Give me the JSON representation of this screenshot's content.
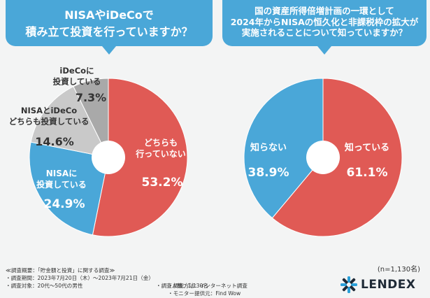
{
  "questions": {
    "q1": [
      "NISAやiDeCoで",
      "積み立て投資を行っていますか？"
    ],
    "q2": [
      "国の資産所得倍増計画の一環として",
      "2024年からNISAの恒久化と非課税枠の拡大が",
      "実施されることについて知っていますか？"
    ]
  },
  "chart_data": [
    {
      "type": "pie",
      "title": "NISAやiDeCoで積み立て投資を行っていますか？",
      "slices": [
        {
          "label": [
            "どちらも",
            "行っていない"
          ],
          "value": 53.2,
          "display": "53.2%",
          "color": "#e05a55"
        },
        {
          "label": [
            "NISAに",
            "投資している"
          ],
          "value": 24.9,
          "display": "24.9%",
          "color": "#4aa7d8"
        },
        {
          "label": [
            "NISAとiDeCo",
            "どちらも投資している"
          ],
          "value": 14.6,
          "display": "14.6%",
          "color": "#c9c9c9"
        },
        {
          "label": [
            "iDeCoに",
            "投資している"
          ],
          "value": 7.3,
          "display": "7.3%",
          "color": "#a9a9a9"
        }
      ]
    },
    {
      "type": "pie",
      "title": "国の資産所得倍増計画の一環として2024年からNISAの恒久化と非課税枠の拡大が実施されることについて知っていますか？",
      "slices": [
        {
          "label": [
            "知っている"
          ],
          "value": 61.1,
          "display": "61.1%",
          "color": "#e05a55"
        },
        {
          "label": [
            "知らない"
          ],
          "value": 38.9,
          "display": "38.9%",
          "color": "#4aa7d8"
        }
      ]
    }
  ],
  "n_note": "(n=1,130名)",
  "footer": {
    "title": "≪調査概要：「貯金額と投資」に関する調査≫",
    "period": "・調査期間：2023年7月20日（木）〜2023年7月21日（金）",
    "method": "・調査方法：インターネット調査",
    "target": "・調査対象：20代〜50代の男性",
    "count": "・調査人数：1,130名",
    "provider": "・モニター提供元：Find Wow"
  },
  "logo": {
    "text": "LENDEX",
    "icon": "lendex-star-icon",
    "color": "#2a9fd8"
  }
}
